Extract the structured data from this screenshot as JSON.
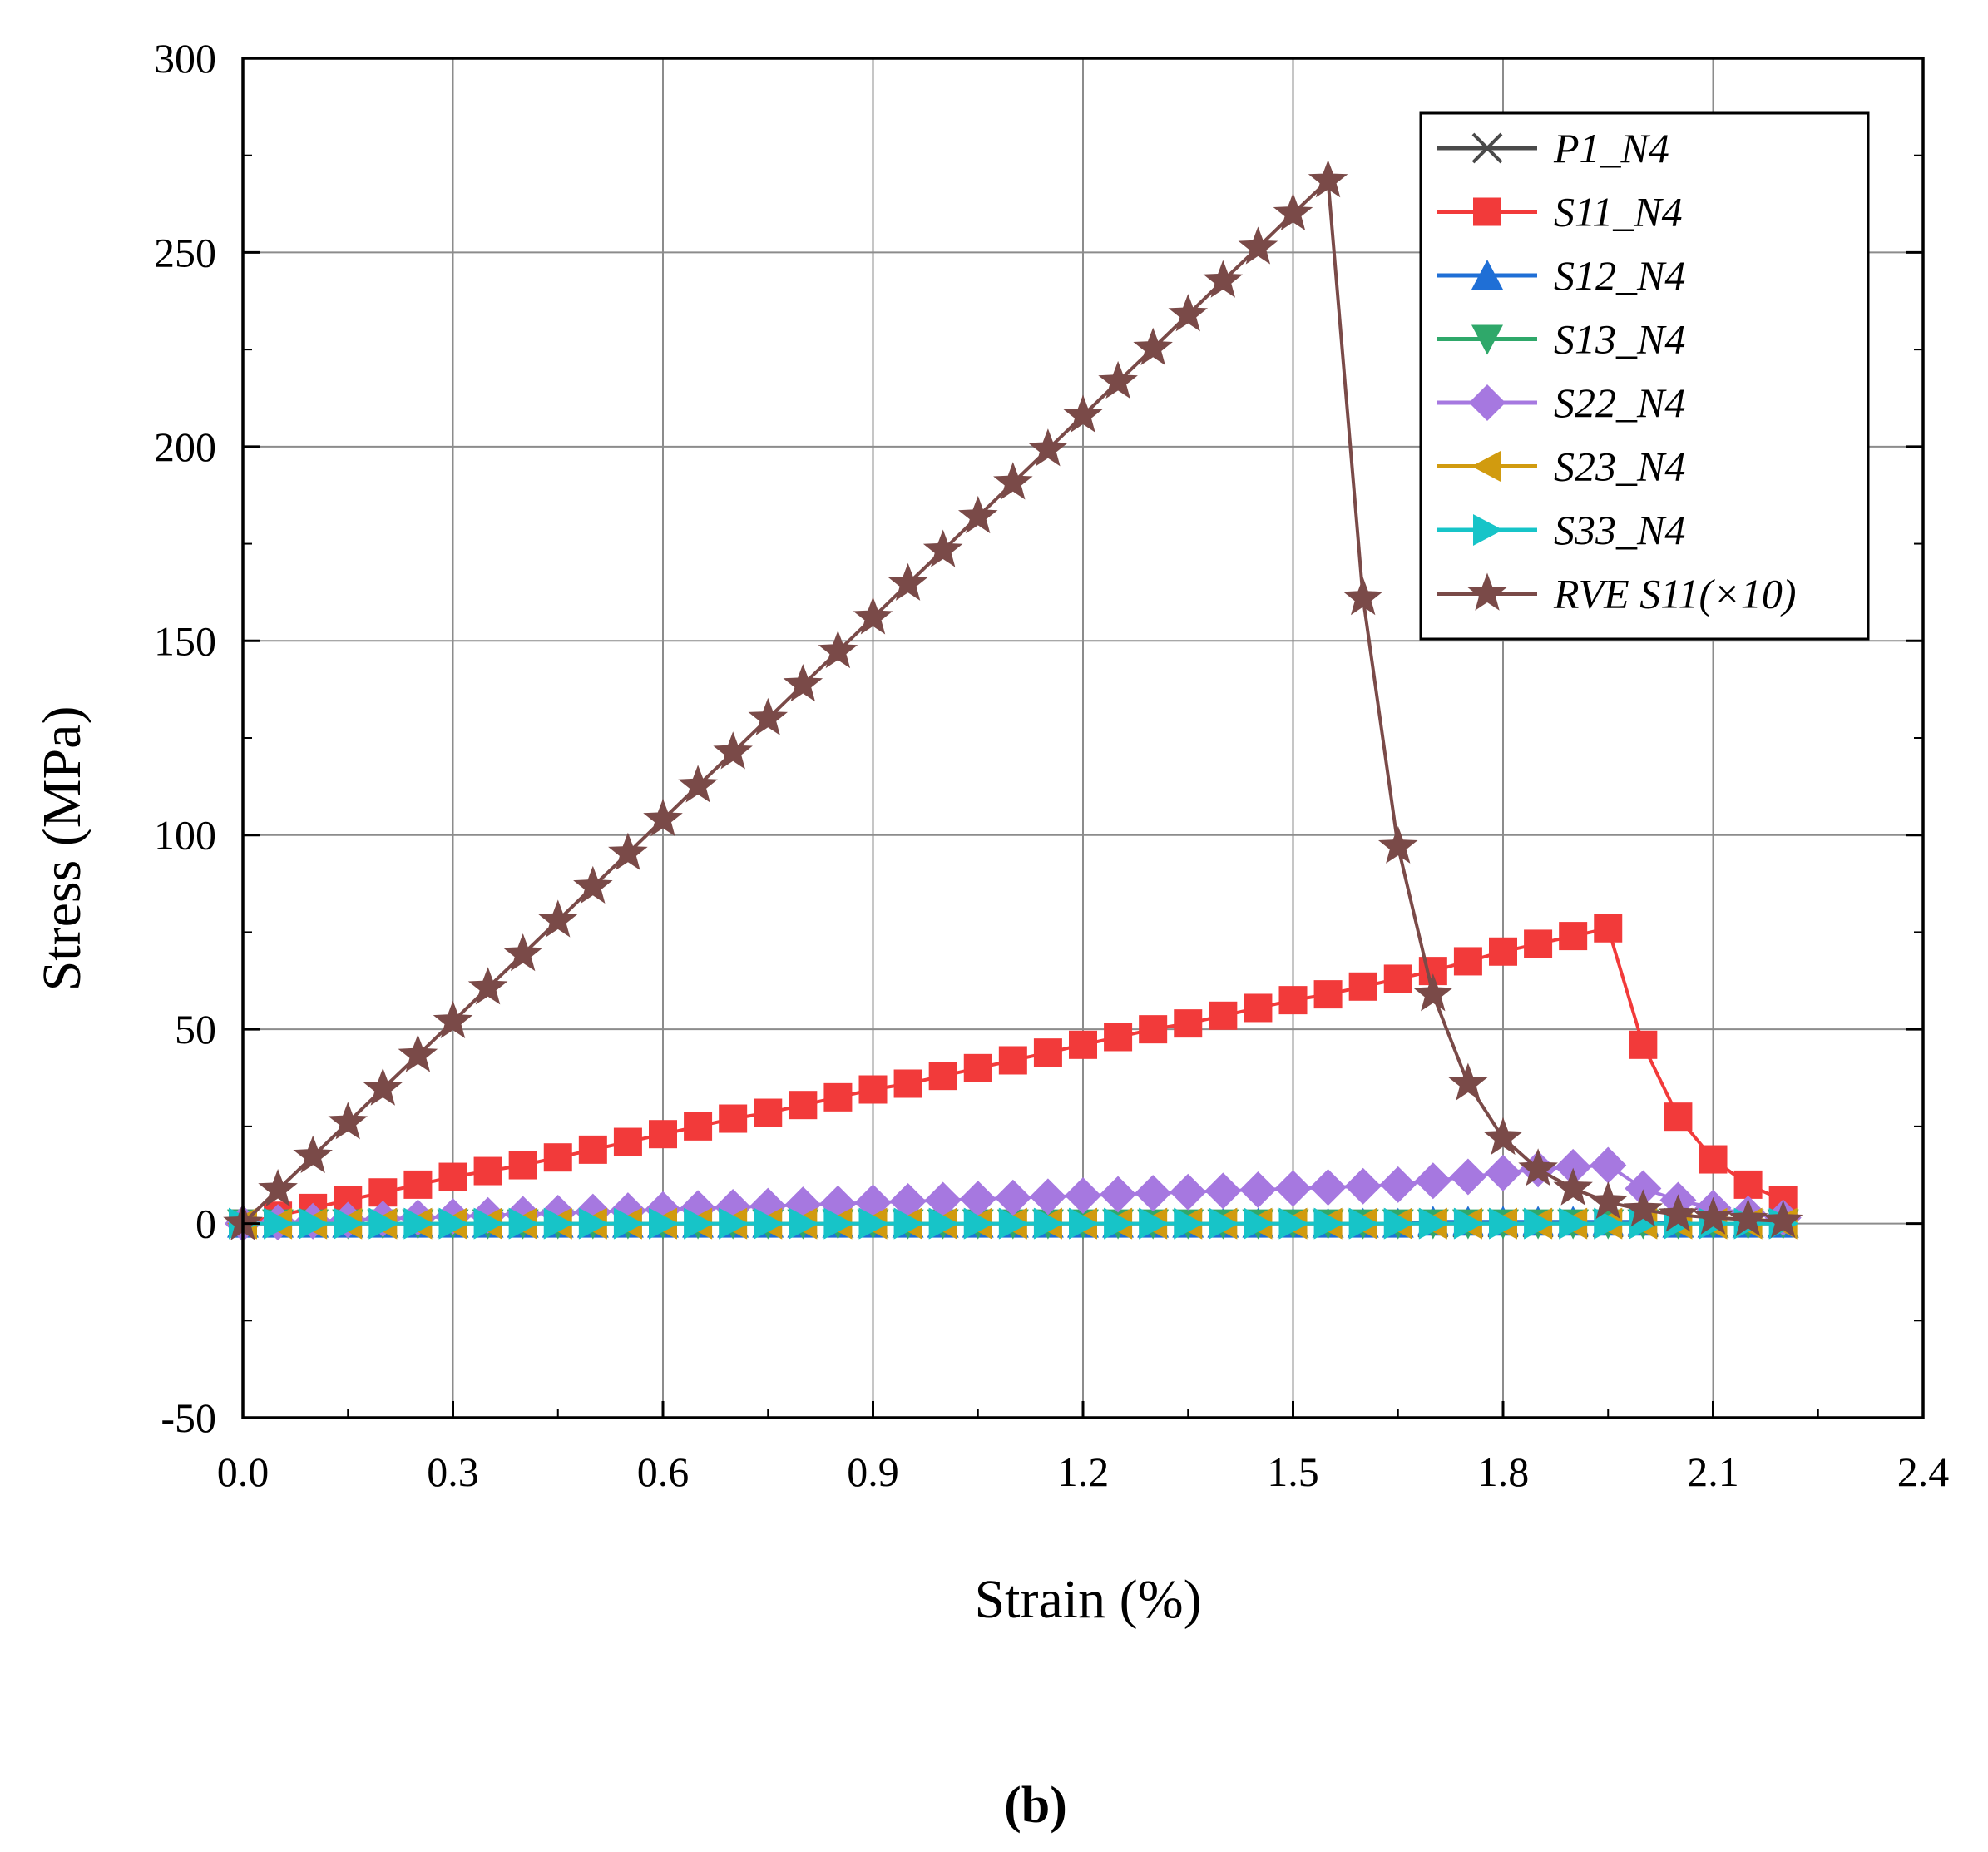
{
  "chart_data": {
    "type": "line",
    "title": "",
    "xlabel": "Strain (%)",
    "ylabel": "Stress (MPa)",
    "xlim": [
      0.0,
      2.4
    ],
    "ylim": [
      -50,
      300
    ],
    "x_ticks": [
      "0.0",
      "0.3",
      "0.6",
      "0.9",
      "1.2",
      "1.5",
      "1.8",
      "2.1",
      "2.4"
    ],
    "y_ticks": [
      "-50",
      "0",
      "50",
      "100",
      "150",
      "200",
      "250",
      "300"
    ],
    "grid": true,
    "legend_position": "top-right",
    "caption": "(b)",
    "series": [
      {
        "name": "P1_N4",
        "color": "#4a4a4a",
        "marker": "x",
        "x": [
          0.0,
          0.05,
          0.1,
          0.15,
          0.2,
          0.25,
          0.3,
          0.35,
          0.4,
          0.45,
          0.5,
          0.55,
          0.6,
          0.65,
          0.7,
          0.75,
          0.8,
          0.85,
          0.9,
          0.95,
          1.0,
          1.05,
          1.1,
          1.15,
          1.2,
          1.25,
          1.3,
          1.35,
          1.4,
          1.45,
          1.5,
          1.55,
          1.6,
          1.65,
          1.7,
          1.75,
          1.8,
          1.85,
          1.9,
          1.95,
          2.0,
          2.05,
          2.1,
          2.15,
          2.2
        ],
        "y": [
          0,
          0,
          0,
          0,
          0,
          0,
          0,
          0,
          0,
          0,
          0,
          0,
          0,
          0,
          0,
          0,
          0,
          0,
          0,
          0,
          0,
          0,
          0,
          0,
          0,
          0,
          0,
          0,
          0,
          0,
          0,
          0,
          0,
          0,
          0,
          0,
          0,
          0,
          0,
          0,
          0,
          0,
          0,
          0,
          0
        ]
      },
      {
        "name": "S11_N4",
        "color": "#f23a3a",
        "marker": "square",
        "x": [
          0.0,
          0.05,
          0.1,
          0.15,
          0.2,
          0.25,
          0.3,
          0.35,
          0.4,
          0.45,
          0.5,
          0.55,
          0.6,
          0.65,
          0.7,
          0.75,
          0.8,
          0.85,
          0.9,
          0.95,
          1.0,
          1.05,
          1.1,
          1.15,
          1.2,
          1.25,
          1.3,
          1.35,
          1.4,
          1.45,
          1.5,
          1.55,
          1.6,
          1.65,
          1.7,
          1.75,
          1.8,
          1.85,
          1.9,
          1.95,
          2.0,
          2.05,
          2.1,
          2.15,
          2.2
        ],
        "y": [
          0,
          2,
          4,
          6,
          8,
          10,
          12,
          13.5,
          15,
          17,
          19,
          21,
          23,
          25,
          27,
          28.5,
          30.5,
          32.5,
          34.5,
          36,
          38,
          40,
          42,
          44,
          46,
          48,
          50,
          51.5,
          53.5,
          55.5,
          57.5,
          59,
          61,
          63,
          65,
          67.5,
          70,
          72,
          74,
          76,
          46,
          27.5,
          16.5,
          10,
          6
        ]
      },
      {
        "name": "S12_N4",
        "color": "#1f6fd6",
        "marker": "triangle-up",
        "x": [
          0.0,
          0.05,
          0.1,
          0.15,
          0.2,
          0.25,
          0.3,
          0.35,
          0.4,
          0.45,
          0.5,
          0.55,
          0.6,
          0.65,
          0.7,
          0.75,
          0.8,
          0.85,
          0.9,
          0.95,
          1.0,
          1.05,
          1.1,
          1.15,
          1.2,
          1.25,
          1.3,
          1.35,
          1.4,
          1.45,
          1.5,
          1.55,
          1.6,
          1.65,
          1.7,
          1.75,
          1.8,
          1.85,
          1.9,
          1.95,
          2.0,
          2.05,
          2.1,
          2.15,
          2.2
        ],
        "y": [
          0,
          0,
          0,
          0,
          0,
          0,
          0,
          0,
          0,
          0,
          0,
          0,
          0,
          0,
          0,
          0,
          0,
          0,
          0,
          0,
          0,
          0,
          0,
          0,
          0,
          0,
          0,
          0,
          0,
          0,
          0,
          0,
          0,
          0,
          0.5,
          0.5,
          0.5,
          0.5,
          0.5,
          0.5,
          0.5,
          0,
          0,
          0,
          0
        ]
      },
      {
        "name": "S13_N4",
        "color": "#2fa86a",
        "marker": "triangle-down",
        "x": [
          0.0,
          0.05,
          0.1,
          0.15,
          0.2,
          0.25,
          0.3,
          0.35,
          0.4,
          0.45,
          0.5,
          0.55,
          0.6,
          0.65,
          0.7,
          0.75,
          0.8,
          0.85,
          0.9,
          0.95,
          1.0,
          1.05,
          1.1,
          1.15,
          1.2,
          1.25,
          1.3,
          1.35,
          1.4,
          1.45,
          1.5,
          1.55,
          1.6,
          1.65,
          1.7,
          1.75,
          1.8,
          1.85,
          1.9,
          1.95,
          2.0,
          2.05,
          2.1,
          2.15,
          2.2
        ],
        "y": [
          0,
          0,
          0,
          0,
          0,
          0,
          0,
          0,
          0,
          0,
          0,
          0,
          0,
          0,
          0,
          0,
          0,
          0,
          0,
          0,
          0,
          0,
          0,
          0,
          0,
          0,
          0,
          0,
          0,
          0,
          0,
          0,
          0,
          0,
          0,
          0,
          0,
          0,
          0,
          0,
          0,
          0,
          0,
          0,
          0
        ]
      },
      {
        "name": "S22_N4",
        "color": "#a678e0",
        "marker": "diamond",
        "x": [
          0.0,
          0.05,
          0.1,
          0.15,
          0.2,
          0.25,
          0.3,
          0.35,
          0.4,
          0.45,
          0.5,
          0.55,
          0.6,
          0.65,
          0.7,
          0.75,
          0.8,
          0.85,
          0.9,
          0.95,
          1.0,
          1.05,
          1.1,
          1.15,
          1.2,
          1.25,
          1.3,
          1.35,
          1.4,
          1.45,
          1.5,
          1.55,
          1.6,
          1.65,
          1.7,
          1.75,
          1.8,
          1.85,
          1.9,
          1.95,
          2.0,
          2.05,
          2.1,
          2.15,
          2.2
        ],
        "y": [
          0,
          0.3,
          0.6,
          0.9,
          1.2,
          1.5,
          1.8,
          2.1,
          2.4,
          2.7,
          3.0,
          3.3,
          3.6,
          3.9,
          4.2,
          4.5,
          4.8,
          5.1,
          5.4,
          5.7,
          6.0,
          6.3,
          6.6,
          6.9,
          7.2,
          7.5,
          7.8,
          8.1,
          8.4,
          8.7,
          9.0,
          9.3,
          9.6,
          10.0,
          11.0,
          12.0,
          13.0,
          14.0,
          14.5,
          15.0,
          9.0,
          6.0,
          4.0,
          2.5,
          1.5
        ]
      },
      {
        "name": "S23_N4",
        "color": "#d19b0f",
        "marker": "triangle-left",
        "x": [
          0.0,
          0.05,
          0.1,
          0.15,
          0.2,
          0.25,
          0.3,
          0.35,
          0.4,
          0.45,
          0.5,
          0.55,
          0.6,
          0.65,
          0.7,
          0.75,
          0.8,
          0.85,
          0.9,
          0.95,
          1.0,
          1.05,
          1.1,
          1.15,
          1.2,
          1.25,
          1.3,
          1.35,
          1.4,
          1.45,
          1.5,
          1.55,
          1.6,
          1.65,
          1.7,
          1.75,
          1.8,
          1.85,
          1.9,
          1.95,
          2.0,
          2.05,
          2.1,
          2.15,
          2.2
        ],
        "y": [
          0,
          0,
          0,
          0,
          0,
          0,
          0,
          0,
          0,
          0,
          0,
          0,
          0,
          0,
          0,
          0,
          0,
          0,
          0,
          0,
          0,
          0,
          0,
          0,
          0,
          0,
          0,
          0,
          0,
          0,
          0,
          0,
          0,
          0,
          0,
          0,
          0,
          0,
          0,
          0,
          0,
          0,
          0,
          0,
          0
        ]
      },
      {
        "name": "S33_N4",
        "color": "#17c4c8",
        "marker": "triangle-right",
        "x": [
          0.0,
          0.05,
          0.1,
          0.15,
          0.2,
          0.25,
          0.3,
          0.35,
          0.4,
          0.45,
          0.5,
          0.55,
          0.6,
          0.65,
          0.7,
          0.75,
          0.8,
          0.85,
          0.9,
          0.95,
          1.0,
          1.05,
          1.1,
          1.15,
          1.2,
          1.25,
          1.3,
          1.35,
          1.4,
          1.45,
          1.5,
          1.55,
          1.6,
          1.65,
          1.7,
          1.75,
          1.8,
          1.85,
          1.9,
          1.95,
          2.0,
          2.05,
          2.1,
          2.15,
          2.2
        ],
        "y": [
          0,
          0,
          0,
          0,
          0,
          0,
          0,
          0,
          0,
          0,
          0,
          0,
          0,
          0,
          0,
          0,
          0,
          0,
          0,
          0,
          0,
          0,
          0,
          0,
          0,
          0,
          0,
          0,
          0,
          0,
          0,
          0,
          0,
          0,
          0,
          0,
          0,
          0,
          0,
          0,
          0,
          0,
          0,
          0,
          0
        ]
      },
      {
        "name": "RVE S11(×10)",
        "color": "#7a4a48",
        "marker": "star",
        "x": [
          0.0,
          0.05,
          0.1,
          0.15,
          0.2,
          0.25,
          0.3,
          0.35,
          0.4,
          0.45,
          0.5,
          0.55,
          0.6,
          0.65,
          0.7,
          0.75,
          0.8,
          0.85,
          0.9,
          0.95,
          1.0,
          1.05,
          1.1,
          1.15,
          1.2,
          1.25,
          1.3,
          1.35,
          1.4,
          1.45,
          1.5,
          1.55,
          1.6,
          1.65,
          1.7,
          1.75,
          1.8,
          1.85,
          1.9,
          1.95,
          2.0,
          2.05,
          2.1,
          2.15,
          2.2
        ],
        "y": [
          0,
          8.7,
          17.3,
          26,
          34.7,
          43.3,
          52,
          60.7,
          69.3,
          78,
          86.7,
          95.3,
          104,
          112.7,
          121.3,
          130,
          138.7,
          147.3,
          156,
          164.7,
          173.3,
          182,
          190.7,
          199.3,
          208,
          216.7,
          225.3,
          234,
          242.7,
          251.3,
          260,
          268.5,
          161,
          97,
          59,
          36,
          22,
          14,
          9,
          5.5,
          3.5,
          2.2,
          1.5,
          1.0,
          0.6
        ]
      }
    ]
  }
}
